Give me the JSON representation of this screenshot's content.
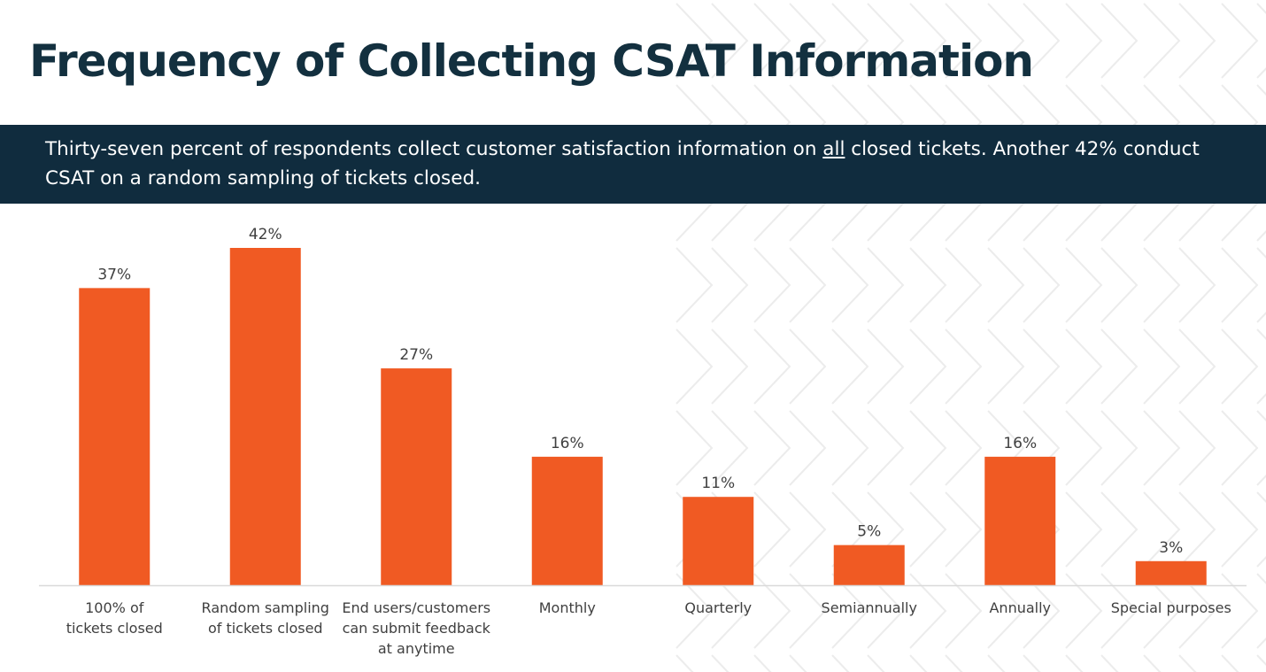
{
  "title": "Frequency of Collecting CSAT Information",
  "banner": {
    "text_before": "Thirty-seven percent of respondents collect customer satisfaction information on ",
    "underlined": "all",
    "text_after": " closed tickets. Another 42% conduct CSAT on a random sampling of tickets closed."
  },
  "colors": {
    "bar": "#f05a23",
    "banner": "#102c3e",
    "title": "#13303f",
    "axis": "#d9d9d9",
    "label_text": "#404040"
  },
  "chart_data": {
    "type": "bar",
    "categories": [
      [
        "100% of",
        "tickets closed"
      ],
      [
        "Random sampling",
        "of tickets closed"
      ],
      [
        "End users/customers",
        "can submit feedback",
        "at anytime"
      ],
      [
        "Monthly"
      ],
      [
        "Quarterly"
      ],
      [
        "Semiannually"
      ],
      [
        "Annually"
      ],
      [
        "Special purposes"
      ]
    ],
    "values": [
      37,
      42,
      27,
      16,
      11,
      5,
      16,
      3
    ],
    "value_labels": [
      "37%",
      "42%",
      "27%",
      "16%",
      "11%",
      "5%",
      "16%",
      "3%"
    ],
    "ylim": [
      0,
      42
    ],
    "grid": false,
    "legend": "none",
    "title": "",
    "xlabel": "",
    "ylabel": ""
  }
}
